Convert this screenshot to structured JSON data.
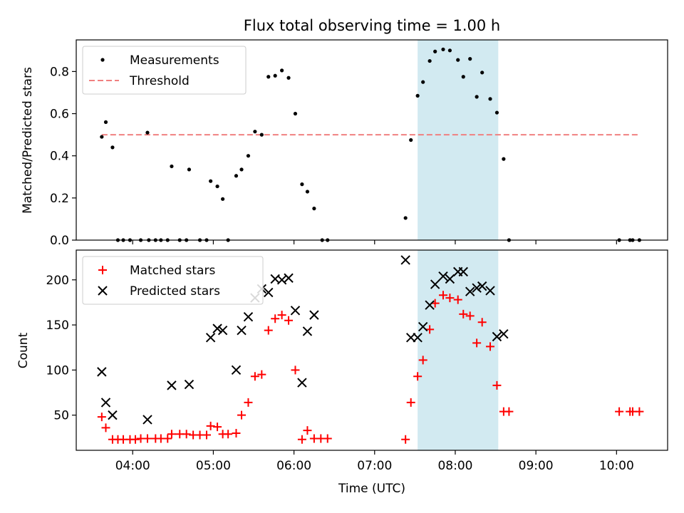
{
  "title": "Flux total observing time = 1.00 h",
  "colors": {
    "measurement": "#000000",
    "threshold": "#f08080",
    "matched": "#ff0000",
    "predicted": "#000000",
    "highlight": "#add8e6"
  },
  "chart_data": [
    {
      "type": "scatter",
      "ylabel": "Matched/Predicted stars",
      "xlabel": "",
      "xlim": [
        "03:18",
        "10:38"
      ],
      "ylim": [
        0,
        0.95
      ],
      "yticks": [
        0.0,
        0.2,
        0.4,
        0.6,
        0.8
      ],
      "ytick_labels": [
        "0.0",
        "0.2",
        "0.4",
        "0.6",
        "0.8"
      ],
      "legend": {
        "position": "top-left",
        "entries": [
          "Measurements",
          "Threshold"
        ]
      },
      "highlight_span": [
        "07:32",
        "08:32"
      ],
      "threshold": {
        "name": "Threshold",
        "y": 0.5,
        "x": [
          "03:37",
          "10:17"
        ]
      },
      "series": [
        {
          "name": "Measurements",
          "points": [
            [
              "03:37",
              0.49
            ],
            [
              "03:40",
              0.56
            ],
            [
              "03:45",
              0.44
            ],
            [
              "03:49",
              0.0
            ],
            [
              "03:53",
              0.0
            ],
            [
              "03:58",
              0.0
            ],
            [
              "04:06",
              0.0
            ],
            [
              "04:11",
              0.51
            ],
            [
              "04:12",
              0.0
            ],
            [
              "04:17",
              0.0
            ],
            [
              "04:21",
              0.0
            ],
            [
              "04:26",
              0.0
            ],
            [
              "04:29",
              0.35
            ],
            [
              "04:35",
              0.0
            ],
            [
              "04:40",
              0.0
            ],
            [
              "04:42",
              0.335
            ],
            [
              "04:50",
              0.0
            ],
            [
              "04:55",
              0.0
            ],
            [
              "04:58",
              0.28
            ],
            [
              "05:03",
              0.255
            ],
            [
              "05:07",
              0.195
            ],
            [
              "05:11",
              0.0
            ],
            [
              "05:17",
              0.305
            ],
            [
              "05:21",
              0.335
            ],
            [
              "05:26",
              0.4
            ],
            [
              "05:31",
              0.515
            ],
            [
              "05:36",
              0.5
            ],
            [
              "05:41",
              0.775
            ],
            [
              "05:46",
              0.78
            ],
            [
              "05:51",
              0.805
            ],
            [
              "05:56",
              0.77
            ],
            [
              "06:01",
              0.6
            ],
            [
              "06:06",
              0.265
            ],
            [
              "06:10",
              0.23
            ],
            [
              "06:15",
              0.15
            ],
            [
              "06:21",
              0.0
            ],
            [
              "06:25",
              0.0
            ],
            [
              "07:23",
              0.105
            ],
            [
              "07:27",
              0.475
            ],
            [
              "07:32",
              0.685
            ],
            [
              "07:36",
              0.75
            ],
            [
              "07:41",
              0.85
            ],
            [
              "07:45",
              0.895
            ],
            [
              "07:51",
              0.905
            ],
            [
              "07:56",
              0.9
            ],
            [
              "08:02",
              0.855
            ],
            [
              "08:06",
              0.775
            ],
            [
              "08:11",
              0.86
            ],
            [
              "08:16",
              0.68
            ],
            [
              "08:20",
              0.795
            ],
            [
              "08:26",
              0.67
            ],
            [
              "08:31",
              0.605
            ],
            [
              "08:36",
              0.385
            ],
            [
              "08:40",
              0.0
            ],
            [
              "10:02",
              0.0
            ],
            [
              "10:10",
              0.0
            ],
            [
              "10:12",
              0.0
            ],
            [
              "10:17",
              0.0
            ]
          ]
        }
      ]
    },
    {
      "type": "scatter",
      "xlabel": "Time (UTC)",
      "ylabel": "Count",
      "xlim": [
        "03:18",
        "10:38"
      ],
      "ylim": [
        11,
        233
      ],
      "xtick_labels": [
        "04:00",
        "05:00",
        "06:00",
        "07:00",
        "08:00",
        "09:00",
        "10:00"
      ],
      "yticks": [
        50,
        100,
        150,
        200
      ],
      "ytick_labels": [
        "50",
        "100",
        "150",
        "200"
      ],
      "legend": {
        "position": "top-left",
        "entries": [
          "Matched stars",
          "Predicted stars"
        ]
      },
      "highlight_span": [
        "07:32",
        "08:32"
      ],
      "series": [
        {
          "name": "Matched stars",
          "marker": "plus",
          "points": [
            [
              "03:37",
              48
            ],
            [
              "03:40",
              36
            ],
            [
              "03:45",
              23
            ],
            [
              "03:49",
              23
            ],
            [
              "03:53",
              23
            ],
            [
              "03:58",
              23
            ],
            [
              "04:02",
              23
            ],
            [
              "04:06",
              24
            ],
            [
              "04:11",
              24
            ],
            [
              "04:17",
              24
            ],
            [
              "04:21",
              24
            ],
            [
              "04:26",
              24
            ],
            [
              "04:29",
              29
            ],
            [
              "04:35",
              29
            ],
            [
              "04:40",
              29
            ],
            [
              "04:45",
              28
            ],
            [
              "04:50",
              28
            ],
            [
              "04:55",
              28
            ],
            [
              "04:58",
              38
            ],
            [
              "05:03",
              37
            ],
            [
              "05:07",
              29
            ],
            [
              "05:11",
              29
            ],
            [
              "05:17",
              30
            ],
            [
              "05:21",
              50
            ],
            [
              "05:26",
              64
            ],
            [
              "05:31",
              93
            ],
            [
              "05:36",
              95
            ],
            [
              "05:41",
              144
            ],
            [
              "05:46",
              157
            ],
            [
              "05:51",
              161
            ],
            [
              "05:56",
              155
            ],
            [
              "06:01",
              100
            ],
            [
              "06:06",
              23
            ],
            [
              "06:10",
              33
            ],
            [
              "06:15",
              24
            ],
            [
              "06:20",
              24
            ],
            [
              "06:25",
              24
            ],
            [
              "07:23",
              23
            ],
            [
              "07:27",
              64
            ],
            [
              "07:32",
              93
            ],
            [
              "07:36",
              111
            ],
            [
              "07:41",
              145
            ],
            [
              "07:45",
              174
            ],
            [
              "07:51",
              183
            ],
            [
              "07:56",
              180
            ],
            [
              "08:02",
              178
            ],
            [
              "08:06",
              162
            ],
            [
              "08:11",
              160
            ],
            [
              "08:16",
              130
            ],
            [
              "08:20",
              153
            ],
            [
              "08:26",
              126
            ],
            [
              "08:31",
              83
            ],
            [
              "08:36",
              54
            ],
            [
              "08:40",
              54
            ],
            [
              "10:02",
              54
            ],
            [
              "10:10",
              54
            ],
            [
              "10:12",
              54
            ],
            [
              "10:17",
              54
            ]
          ]
        },
        {
          "name": "Predicted stars",
          "marker": "x",
          "points": [
            [
              "03:37",
              98
            ],
            [
              "03:40",
              64
            ],
            [
              "03:45",
              50
            ],
            [
              "04:11",
              45
            ],
            [
              "04:29",
              83
            ],
            [
              "04:42",
              84
            ],
            [
              "04:58",
              136
            ],
            [
              "05:03",
              146
            ],
            [
              "05:07",
              144
            ],
            [
              "05:17",
              100
            ],
            [
              "05:21",
              144
            ],
            [
              "05:26",
              159
            ],
            [
              "05:31",
              180
            ],
            [
              "05:36",
              190
            ],
            [
              "05:41",
              186
            ],
            [
              "05:46",
              201
            ],
            [
              "05:51",
              200
            ],
            [
              "05:56",
              202
            ],
            [
              "06:01",
              166
            ],
            [
              "06:06",
              86
            ],
            [
              "06:10",
              143
            ],
            [
              "06:15",
              161
            ],
            [
              "07:23",
              222
            ],
            [
              "07:27",
              136
            ],
            [
              "07:32",
              136
            ],
            [
              "07:36",
              148
            ],
            [
              "07:41",
              172
            ],
            [
              "07:45",
              195
            ],
            [
              "07:51",
              204
            ],
            [
              "07:56",
              201
            ],
            [
              "08:02",
              209
            ],
            [
              "08:06",
              209
            ],
            [
              "08:11",
              187
            ],
            [
              "08:16",
              191
            ],
            [
              "08:20",
              193
            ],
            [
              "08:26",
              188
            ],
            [
              "08:31",
              137
            ],
            [
              "08:36",
              140
            ]
          ]
        }
      ]
    }
  ]
}
